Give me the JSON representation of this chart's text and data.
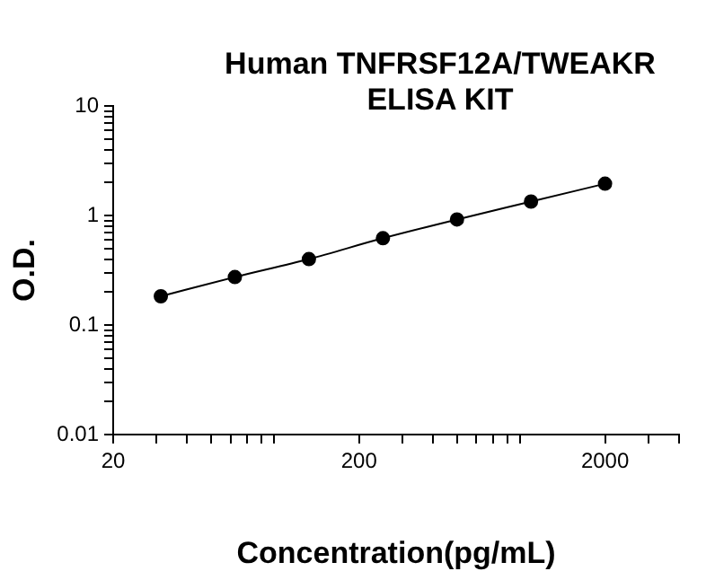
{
  "chart_data": {
    "type": "line",
    "title": "Human TNFRSF12A/TWEAKR ELISA KIT",
    "xlabel": "Concentration(pg/mL)",
    "ylabel": "O.D.",
    "x": [
      31.25,
      62.5,
      125,
      250,
      500,
      1000,
      2000
    ],
    "series": [
      {
        "color": "#000000",
        "values": [
          0.183,
          0.274,
          0.4,
          0.62,
          0.92,
          1.34,
          1.95
        ]
      }
    ],
    "log": "xy",
    "marker": "circle",
    "line_style": "solid",
    "grid": false,
    "legend": false,
    "xlim": [
      20,
      4000
    ],
    "xticks": [
      20,
      {
        "value": 30,
        "label": null
      },
      {
        "value": 40,
        "label": null
      },
      {
        "value": 50,
        "label": null
      },
      {
        "value": 60,
        "label": null
      },
      {
        "value": 70,
        "label": null
      },
      {
        "value": 80,
        "label": null
      },
      {
        "value": 90,
        "label": null
      },
      200,
      {
        "value": 300,
        "label": null
      },
      {
        "value": 400,
        "label": null
      },
      {
        "value": 500,
        "label": null
      },
      {
        "value": 600,
        "label": null
      },
      {
        "value": 700,
        "label": null
      },
      {
        "value": 800,
        "label": null
      },
      {
        "value": 900,
        "label": null
      },
      2000,
      {
        "value": 3000,
        "label": null
      },
      {
        "value": 4000,
        "label": null
      }
    ],
    "ylim": [
      0.01,
      10
    ],
    "yticks": [
      0.01,
      {
        "value": 0.02,
        "label": null
      },
      {
        "value": 0.03,
        "label": null
      },
      {
        "value": 0.04,
        "label": null
      },
      {
        "value": 0.05,
        "label": null
      },
      {
        "value": 0.06,
        "label": null
      },
      {
        "value": 0.07,
        "label": null
      },
      {
        "value": 0.08,
        "label": null
      },
      {
        "value": 0.09,
        "label": null
      },
      0.1,
      {
        "value": 0.2,
        "label": null
      },
      {
        "value": 0.3,
        "label": null
      },
      {
        "value": 0.4,
        "label": null
      },
      {
        "value": 0.5,
        "label": null
      },
      {
        "value": 0.6,
        "label": null
      },
      {
        "value": 0.7,
        "label": null
      },
      {
        "value": 0.8,
        "label": null
      },
      {
        "value": 0.9,
        "label": null
      },
      1,
      {
        "value": 2,
        "label": null
      },
      {
        "value": 3,
        "label": null
      },
      {
        "value": 4,
        "label": null
      },
      {
        "value": 5,
        "label": null
      },
      {
        "value": 6,
        "label": null
      },
      {
        "value": 7,
        "label": null
      },
      {
        "value": 8,
        "label": null
      },
      {
        "value": 9,
        "label": null
      },
      10
    ]
  }
}
